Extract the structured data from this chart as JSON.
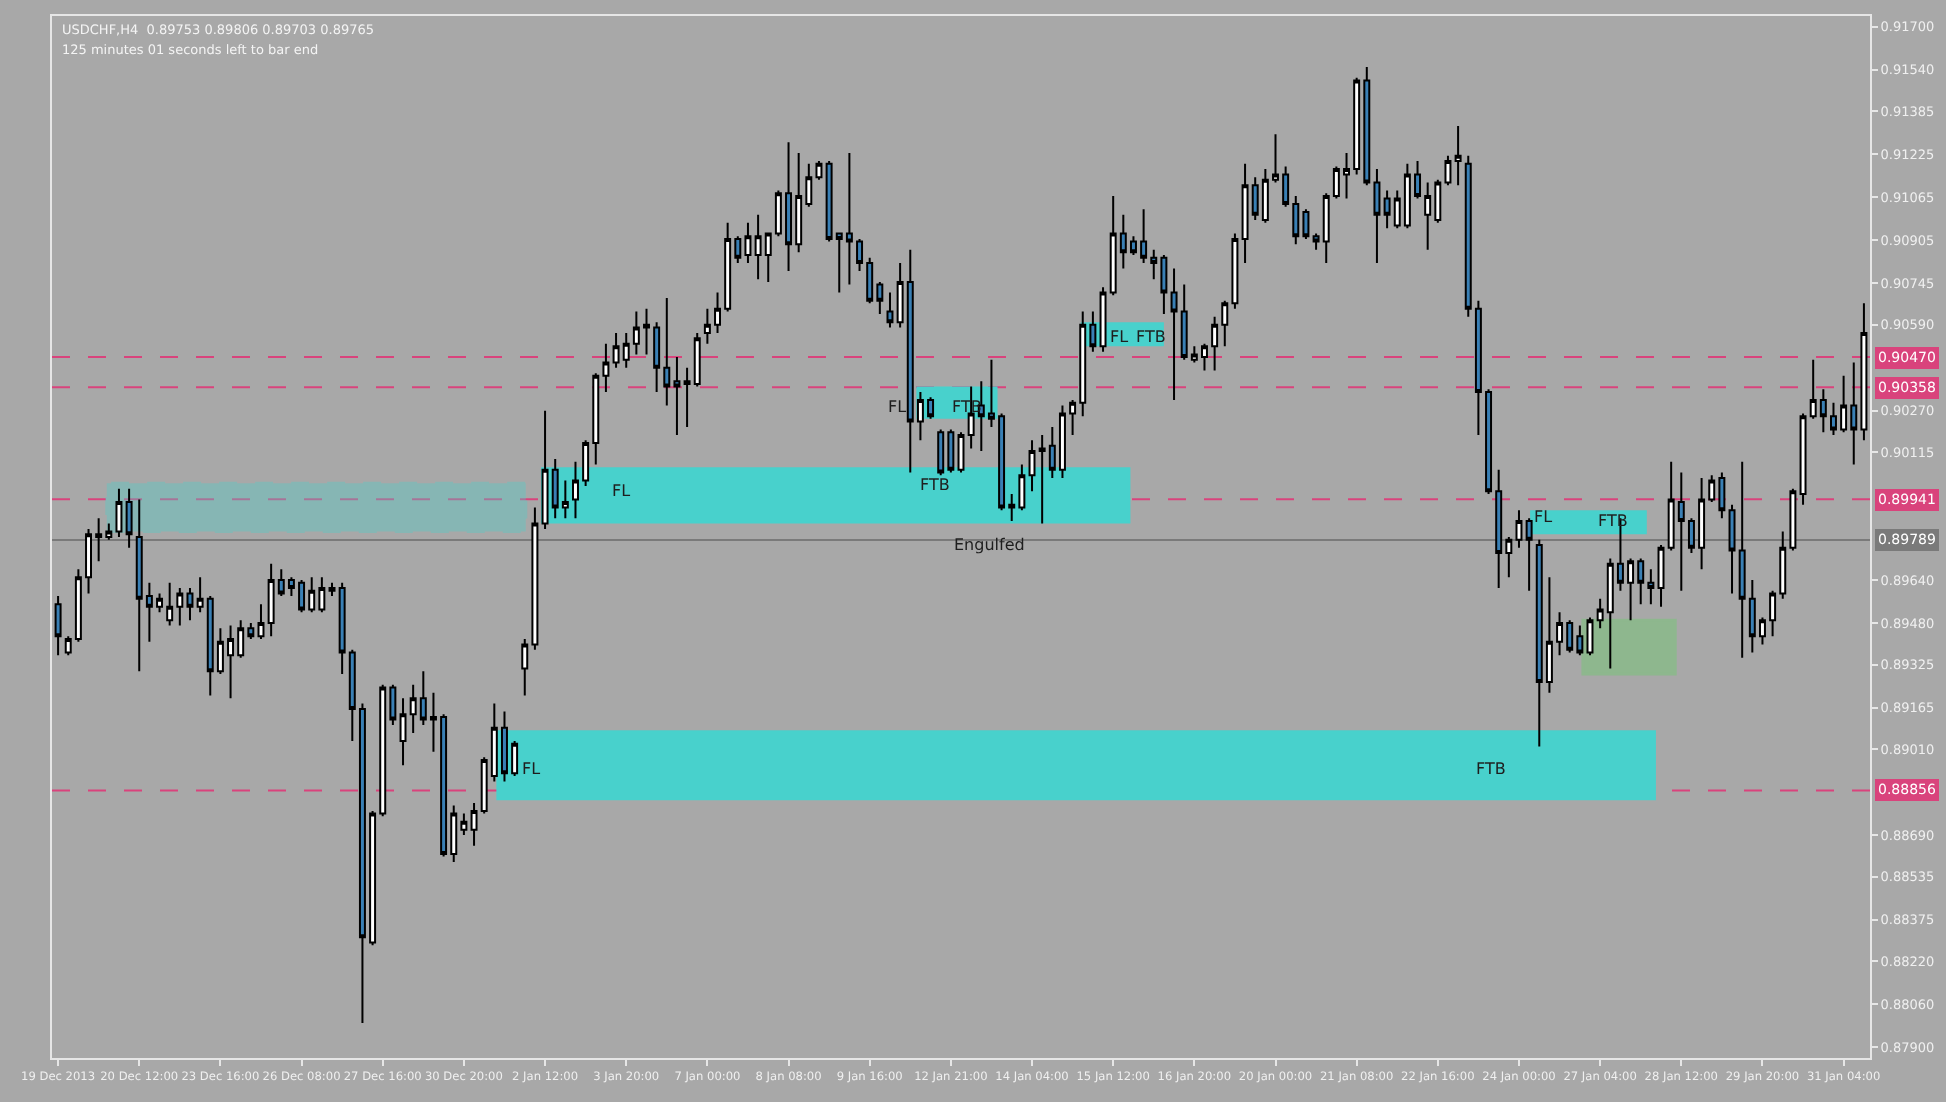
{
  "chart_data": {
    "type": "candlestick",
    "title": "USDCHF,H4  0.89753 0.89806 0.89703 0.89765",
    "subtitle": "125 minutes 01 seconds left to bar end",
    "categories": [
      "19 Dec 2013",
      null,
      null,
      null,
      null,
      null,
      null,
      null,
      "20 Dec 12:00",
      null,
      null,
      null,
      null,
      null,
      null,
      null,
      "23 Dec 16:00",
      null,
      null,
      null,
      null,
      null,
      null,
      null,
      "26 Dec 08:00",
      null,
      null,
      null,
      null,
      null,
      null,
      null,
      "27 Dec 16:00",
      null,
      null,
      null,
      null,
      null,
      null,
      null,
      "30 Dec 20:00",
      null,
      null,
      null,
      null,
      null,
      null,
      null,
      "2 Jan 12:00",
      null,
      null,
      null,
      null,
      null,
      null,
      null,
      "3 Jan 20:00",
      null,
      null,
      null,
      null,
      null,
      null,
      null,
      "7 Jan 00:00",
      null,
      null,
      null,
      null,
      null,
      null,
      null,
      "8 Jan 08:00",
      null,
      null,
      null,
      null,
      null,
      null,
      null,
      "9 Jan 16:00",
      null,
      null,
      null,
      null,
      null,
      null,
      null,
      "12 Jan 21:00",
      null,
      null,
      null,
      null,
      null,
      null,
      null,
      "14 Jan 04:00",
      null,
      null,
      null,
      null,
      null,
      null,
      null,
      "15 Jan 12:00",
      null,
      null,
      null,
      null,
      null,
      null,
      null,
      "16 Jan 20:00",
      null,
      null,
      null,
      null,
      null,
      null,
      null,
      "20 Jan 00:00",
      null,
      null,
      null,
      null,
      null,
      null,
      null,
      "21 Jan 08:00",
      null,
      null,
      null,
      null,
      null,
      null,
      null,
      "22 Jan 16:00",
      null,
      null,
      null,
      null,
      null,
      null,
      null,
      "24 Jan 00:00",
      null,
      null,
      null,
      null,
      null,
      null,
      null,
      "27 Jan 04:00",
      null,
      null,
      null,
      null,
      null,
      null,
      null,
      "28 Jan 12:00",
      null,
      null,
      null,
      null,
      null,
      null,
      null,
      "29 Jan 20:00",
      null,
      null,
      null,
      null,
      null,
      null,
      null,
      "31 Jan 04:00",
      null,
      null
    ],
    "ohlc": [
      [
        0.8955,
        0.8958,
        0.8936,
        0.8943
      ],
      [
        0.8937,
        0.8943,
        0.8936,
        0.8942
      ],
      [
        0.8942,
        0.8968,
        0.8941,
        0.8965
      ],
      [
        0.8965,
        0.8983,
        0.8959,
        0.8981
      ],
      [
        0.898,
        0.8987,
        0.8971,
        0.8981
      ],
      [
        0.898,
        0.8985,
        0.8979,
        0.8982
      ],
      [
        0.8982,
        0.8998,
        0.898,
        0.8993
      ],
      [
        0.8993,
        0.8998,
        0.8976,
        0.8981
      ],
      [
        0.898,
        0.8994,
        0.893,
        0.8957
      ],
      [
        0.8958,
        0.8963,
        0.8941,
        0.8954
      ],
      [
        0.8954,
        0.8959,
        0.8952,
        0.8957
      ],
      [
        0.8949,
        0.8963,
        0.8947,
        0.8954
      ],
      [
        0.8954,
        0.8961,
        0.8947,
        0.8959
      ],
      [
        0.8959,
        0.8961,
        0.8949,
        0.8954
      ],
      [
        0.8954,
        0.8965,
        0.8952,
        0.8957
      ],
      [
        0.8957,
        0.8958,
        0.8921,
        0.893
      ],
      [
        0.893,
        0.8946,
        0.8929,
        0.8941
      ],
      [
        0.8936,
        0.8947,
        0.892,
        0.8942
      ],
      [
        0.8936,
        0.8949,
        0.8935,
        0.8946
      ],
      [
        0.8946,
        0.8948,
        0.8942,
        0.8943
      ],
      [
        0.8943,
        0.8955,
        0.8942,
        0.8948
      ],
      [
        0.8948,
        0.897,
        0.8943,
        0.8964
      ],
      [
        0.8964,
        0.8968,
        0.8958,
        0.8959
      ],
      [
        0.8964,
        0.8965,
        0.8958,
        0.8961
      ],
      [
        0.8963,
        0.8964,
        0.8952,
        0.8953
      ],
      [
        0.8953,
        0.8965,
        0.8952,
        0.896
      ],
      [
        0.8953,
        0.8965,
        0.8952,
        0.8961
      ],
      [
        0.896,
        0.8963,
        0.8958,
        0.8961
      ],
      [
        0.8961,
        0.8963,
        0.8929,
        0.8937
      ],
      [
        0.8937,
        0.8938,
        0.8904,
        0.8916
      ],
      [
        0.8916,
        0.8918,
        0.8799,
        0.8831
      ],
      [
        0.8829,
        0.8878,
        0.8828,
        0.8877
      ],
      [
        0.8877,
        0.8925,
        0.8876,
        0.8924
      ],
      [
        0.8924,
        0.8925,
        0.891,
        0.8912
      ],
      [
        0.8904,
        0.892,
        0.8895,
        0.8914
      ],
      [
        0.8914,
        0.8925,
        0.8907,
        0.892
      ],
      [
        0.892,
        0.893,
        0.891,
        0.8912
      ],
      [
        0.8913,
        0.8922,
        0.89,
        0.8912
      ],
      [
        0.8913,
        0.8914,
        0.8861,
        0.8862
      ],
      [
        0.8862,
        0.888,
        0.8859,
        0.8877
      ],
      [
        0.8871,
        0.8877,
        0.8869,
        0.8874
      ],
      [
        0.8871,
        0.8881,
        0.8865,
        0.8878
      ],
      [
        0.8878,
        0.8898,
        0.8877,
        0.8897
      ],
      [
        0.8891,
        0.8918,
        0.8889,
        0.8909
      ],
      [
        0.8909,
        0.8915,
        0.8889,
        0.8892
      ],
      [
        0.8892,
        0.8904,
        0.8891,
        0.8903
      ],
      [
        0.8931,
        0.8942,
        0.8921,
        0.894
      ],
      [
        0.894,
        0.8991,
        0.8938,
        0.8985
      ],
      [
        0.8985,
        0.9027,
        0.8983,
        0.9005
      ],
      [
        0.9005,
        0.9009,
        0.8987,
        0.8991
      ],
      [
        0.8991,
        0.9001,
        0.8987,
        0.8993
      ],
      [
        0.8994,
        0.9008,
        0.8987,
        0.9001
      ],
      [
        0.9001,
        0.9016,
        0.8999,
        0.9015
      ],
      [
        0.9015,
        0.9041,
        0.9007,
        0.904
      ],
      [
        0.904,
        0.9052,
        0.9034,
        0.9045
      ],
      [
        0.9045,
        0.9056,
        0.9043,
        0.9051
      ],
      [
        0.9046,
        0.9056,
        0.9043,
        0.9052
      ],
      [
        0.9052,
        0.9064,
        0.9048,
        0.9058
      ],
      [
        0.9058,
        0.9065,
        0.9048,
        0.9059
      ],
      [
        0.9058,
        0.906,
        0.9034,
        0.9043
      ],
      [
        0.9043,
        0.9069,
        0.9029,
        0.9036
      ],
      [
        0.9038,
        0.9047,
        0.9018,
        0.9036
      ],
      [
        0.9037,
        0.9043,
        0.9021,
        0.9038
      ],
      [
        0.9037,
        0.9056,
        0.9036,
        0.9054
      ],
      [
        0.9056,
        0.9065,
        0.9052,
        0.9059
      ],
      [
        0.9059,
        0.9071,
        0.9056,
        0.9065
      ],
      [
        0.9065,
        0.9097,
        0.9064,
        0.9091
      ],
      [
        0.9091,
        0.9092,
        0.9082,
        0.9084
      ],
      [
        0.9085,
        0.9097,
        0.9082,
        0.9092
      ],
      [
        0.9085,
        0.91,
        0.9076,
        0.9092
      ],
      [
        0.9085,
        0.9093,
        0.9075,
        0.9093
      ],
      [
        0.9093,
        0.9109,
        0.9092,
        0.9108
      ],
      [
        0.9108,
        0.9127,
        0.9079,
        0.9089
      ],
      [
        0.9089,
        0.9123,
        0.9086,
        0.9107
      ],
      [
        0.9104,
        0.9119,
        0.9103,
        0.9114
      ],
      [
        0.9114,
        0.912,
        0.9113,
        0.9119
      ],
      [
        0.9119,
        0.912,
        0.909,
        0.9091
      ],
      [
        0.9093,
        0.9093,
        0.9071,
        0.9091
      ],
      [
        0.9093,
        0.9123,
        0.9074,
        0.909
      ],
      [
        0.909,
        0.9091,
        0.9079,
        0.9082
      ],
      [
        0.9082,
        0.9084,
        0.9067,
        0.9068
      ],
      [
        0.9074,
        0.9075,
        0.9063,
        0.9068
      ],
      [
        0.9064,
        0.9071,
        0.9058,
        0.906
      ],
      [
        0.906,
        0.9082,
        0.9058,
        0.9075
      ],
      [
        0.9075,
        0.9087,
        0.9004,
        0.9023
      ],
      [
        0.9023,
        0.9034,
        0.9016,
        0.9031
      ],
      [
        0.9031,
        0.9032,
        0.9024,
        0.9025
      ],
      [
        0.9019,
        0.902,
        0.9003,
        0.9004
      ],
      [
        0.9019,
        0.902,
        0.9004,
        0.9005
      ],
      [
        0.9005,
        0.9019,
        0.9004,
        0.9018
      ],
      [
        0.9018,
        0.9036,
        0.9013,
        0.9026
      ],
      [
        0.9029,
        0.9038,
        0.9012,
        0.9025
      ],
      [
        0.9026,
        0.9046,
        0.9021,
        0.9024
      ],
      [
        0.9025,
        0.9026,
        0.899,
        0.8991
      ],
      [
        0.8991,
        0.8996,
        0.8986,
        0.8992
      ],
      [
        0.8991,
        0.9007,
        0.899,
        0.9003
      ],
      [
        0.9003,
        0.9016,
        0.8997,
        0.9012
      ],
      [
        0.9012,
        0.9018,
        0.8985,
        0.9013
      ],
      [
        0.9014,
        0.9021,
        0.9002,
        0.9005
      ],
      [
        0.9005,
        0.9029,
        0.9002,
        0.9026
      ],
      [
        0.9026,
        0.9031,
        0.9018,
        0.903
      ],
      [
        0.903,
        0.9064,
        0.9025,
        0.9059
      ],
      [
        0.9059,
        0.9064,
        0.9049,
        0.9051
      ],
      [
        0.9051,
        0.9073,
        0.9049,
        0.9071
      ],
      [
        0.9071,
        0.9107,
        0.907,
        0.9093
      ],
      [
        0.9093,
        0.91,
        0.908,
        0.9086
      ],
      [
        0.909,
        0.9092,
        0.9085,
        0.9086
      ],
      [
        0.909,
        0.9102,
        0.9082,
        0.9084
      ],
      [
        0.9084,
        0.9087,
        0.9076,
        0.9082
      ],
      [
        0.9084,
        0.9085,
        0.9063,
        0.9071
      ],
      [
        0.9071,
        0.908,
        0.9031,
        0.9064
      ],
      [
        0.9064,
        0.9074,
        0.9046,
        0.9047
      ],
      [
        0.9046,
        0.9051,
        0.9045,
        0.9048
      ],
      [
        0.9047,
        0.9052,
        0.9042,
        0.9051
      ],
      [
        0.9051,
        0.9062,
        0.9042,
        0.9059
      ],
      [
        0.9059,
        0.9068,
        0.9051,
        0.9067
      ],
      [
        0.9067,
        0.9093,
        0.9065,
        0.9091
      ],
      [
        0.9091,
        0.9119,
        0.9082,
        0.9111
      ],
      [
        0.9111,
        0.9114,
        0.9098,
        0.91
      ],
      [
        0.9098,
        0.9117,
        0.9097,
        0.9113
      ],
      [
        0.9113,
        0.913,
        0.9112,
        0.9115
      ],
      [
        0.9115,
        0.9118,
        0.9103,
        0.9104
      ],
      [
        0.9104,
        0.9107,
        0.9089,
        0.9092
      ],
      [
        0.9101,
        0.9102,
        0.9091,
        0.9092
      ],
      [
        0.9092,
        0.9093,
        0.9087,
        0.909
      ],
      [
        0.909,
        0.9108,
        0.9082,
        0.9107
      ],
      [
        0.9107,
        0.9118,
        0.9106,
        0.9117
      ],
      [
        0.9115,
        0.9123,
        0.9106,
        0.9117
      ],
      [
        0.9117,
        0.9151,
        0.9115,
        0.915
      ],
      [
        0.915,
        0.9155,
        0.9111,
        0.9112
      ],
      [
        0.9112,
        0.9117,
        0.9082,
        0.91
      ],
      [
        0.9106,
        0.9109,
        0.9095,
        0.91
      ],
      [
        0.9096,
        0.9109,
        0.9095,
        0.9106
      ],
      [
        0.9096,
        0.9119,
        0.9095,
        0.9115
      ],
      [
        0.9115,
        0.912,
        0.9106,
        0.9107
      ],
      [
        0.91,
        0.9112,
        0.9087,
        0.9107
      ],
      [
        0.9098,
        0.9113,
        0.9097,
        0.9112
      ],
      [
        0.9112,
        0.9122,
        0.9111,
        0.912
      ],
      [
        0.912,
        0.9133,
        0.9111,
        0.9122
      ],
      [
        0.9119,
        0.9122,
        0.9062,
        0.9065
      ],
      [
        0.9065,
        0.9068,
        0.9018,
        0.9034
      ],
      [
        0.9034,
        0.9035,
        0.8996,
        0.8997
      ],
      [
        0.8997,
        0.9005,
        0.8961,
        0.8974
      ],
      [
        0.8974,
        0.898,
        0.8965,
        0.8979
      ],
      [
        0.8979,
        0.899,
        0.8976,
        0.8986
      ],
      [
        0.8986,
        0.8987,
        0.896,
        0.8979
      ],
      [
        0.8977,
        0.8979,
        0.8902,
        0.8926
      ],
      [
        0.8926,
        0.8965,
        0.8922,
        0.8941
      ],
      [
        0.8941,
        0.8952,
        0.8936,
        0.8948
      ],
      [
        0.8948,
        0.8949,
        0.8937,
        0.8938
      ],
      [
        0.8943,
        0.8947,
        0.8936,
        0.8937
      ],
      [
        0.8937,
        0.895,
        0.8936,
        0.8949
      ],
      [
        0.8949,
        0.8957,
        0.8946,
        0.8953
      ],
      [
        0.8952,
        0.8972,
        0.8931,
        0.897
      ],
      [
        0.897,
        0.8987,
        0.896,
        0.8963
      ],
      [
        0.8963,
        0.8972,
        0.8949,
        0.8971
      ],
      [
        0.8971,
        0.8972,
        0.8955,
        0.8963
      ],
      [
        0.8963,
        0.8968,
        0.8955,
        0.8961
      ],
      [
        0.8961,
        0.8977,
        0.8954,
        0.8976
      ],
      [
        0.8976,
        0.9008,
        0.8975,
        0.8994
      ],
      [
        0.8993,
        0.9004,
        0.896,
        0.8986
      ],
      [
        0.8986,
        0.8987,
        0.8974,
        0.8976
      ],
      [
        0.8976,
        0.9002,
        0.8968,
        0.8994
      ],
      [
        0.8994,
        0.9003,
        0.8993,
        0.9001
      ],
      [
        0.9002,
        0.9004,
        0.8987,
        0.899
      ],
      [
        0.899,
        0.8992,
        0.8959,
        0.8975
      ],
      [
        0.8975,
        0.9008,
        0.8935,
        0.8957
      ],
      [
        0.8957,
        0.8964,
        0.8937,
        0.8943
      ],
      [
        0.8943,
        0.895,
        0.894,
        0.8949
      ],
      [
        0.8949,
        0.896,
        0.8943,
        0.8959
      ],
      [
        0.8959,
        0.8982,
        0.8957,
        0.8976
      ],
      [
        0.8976,
        0.8998,
        0.8975,
        0.8997
      ],
      [
        0.8996,
        0.9026,
        0.8992,
        0.9025
      ],
      [
        0.9025,
        0.9046,
        0.9024,
        0.9031
      ],
      [
        0.9031,
        0.9035,
        0.9019,
        0.9025
      ],
      [
        0.9025,
        0.903,
        0.9018,
        0.902
      ],
      [
        0.902,
        0.904,
        0.9019,
        0.9029
      ],
      [
        0.9029,
        0.9045,
        0.9007,
        0.902
      ],
      [
        0.902,
        0.9067,
        0.9016,
        0.9056
      ]
    ],
    "ylim": [
      0.8786,
      0.9174
    ],
    "yticks": [
      {
        "value": 0.917,
        "label": "0.91700"
      },
      {
        "value": 0.9154,
        "label": "0.91540"
      },
      {
        "value": 0.91385,
        "label": "0.91385"
      },
      {
        "value": 0.91225,
        "label": "0.91225"
      },
      {
        "value": 0.91065,
        "label": "0.91065"
      },
      {
        "value": 0.90905,
        "label": "0.90905"
      },
      {
        "value": 0.90745,
        "label": "0.90745"
      },
      {
        "value": 0.9059,
        "label": "0.90590"
      },
      {
        "value": 0.9027,
        "label": "0.90270"
      },
      {
        "value": 0.90115,
        "label": "0.90115"
      },
      {
        "value": 0.8964,
        "label": "0.89640"
      },
      {
        "value": 0.8948,
        "label": "0.89480"
      },
      {
        "value": 0.89325,
        "label": "0.89325"
      },
      {
        "value": 0.89165,
        "label": "0.89165"
      },
      {
        "value": 0.8901,
        "label": "0.89010"
      },
      {
        "value": 0.8869,
        "label": "0.88690"
      },
      {
        "value": 0.88535,
        "label": "0.88535"
      },
      {
        "value": 0.88375,
        "label": "0.88375"
      },
      {
        "value": 0.8822,
        "label": "0.88220"
      },
      {
        "value": 0.8806,
        "label": "0.88060"
      },
      {
        "value": 0.879,
        "label": "0.87900"
      }
    ],
    "grid": false,
    "ref_lines": [
      {
        "axis": "y",
        "value": 0.9047,
        "label": "0.90470",
        "color": "#d9437c",
        "line_style": "dashed"
      },
      {
        "axis": "y",
        "value": 0.90358,
        "label": "0.90358",
        "color": "#d9437c",
        "line_style": "dashed"
      },
      {
        "axis": "y",
        "value": 0.89941,
        "label": "0.89941",
        "color": "#d9437c",
        "line_style": "dashed"
      },
      {
        "axis": "y",
        "value": 0.89789,
        "label": "0.89789",
        "color": "#7a7a7a",
        "line_style": "solid"
      },
      {
        "axis": "y",
        "value": 0.88856,
        "label": "0.88856",
        "color": "#d9437c",
        "line_style": "dashed"
      }
    ],
    "bands": [
      {
        "axis": "y",
        "from": 0.8982,
        "to": 0.9,
        "color": "#48d1cc"
      },
      {
        "axis": "y",
        "from": 0.8985,
        "to": 0.9006,
        "color": "#48d1cc"
      },
      {
        "axis": "y",
        "from": 0.8882,
        "to": 0.8908,
        "color": "#48d1cc"
      },
      {
        "axis": "y",
        "from": 0.9024,
        "to": 0.9036,
        "color": "#48d1cc"
      },
      {
        "axis": "y",
        "from": 0.9051,
        "to": 0.906,
        "color": "#48d1cc"
      },
      {
        "axis": "y",
        "from": 0.8981,
        "to": 0.899,
        "color": "#48d1cc"
      },
      {
        "axis": "y",
        "from": 0.8929,
        "to": 0.8949,
        "color": "#5fd35f"
      }
    ],
    "annotations": [
      "FL",
      "FTB",
      "FL",
      "FTB",
      "FL",
      "FTB",
      "FL",
      "FTB",
      "FL",
      "FTB",
      "Engulfed"
    ]
  }
}
